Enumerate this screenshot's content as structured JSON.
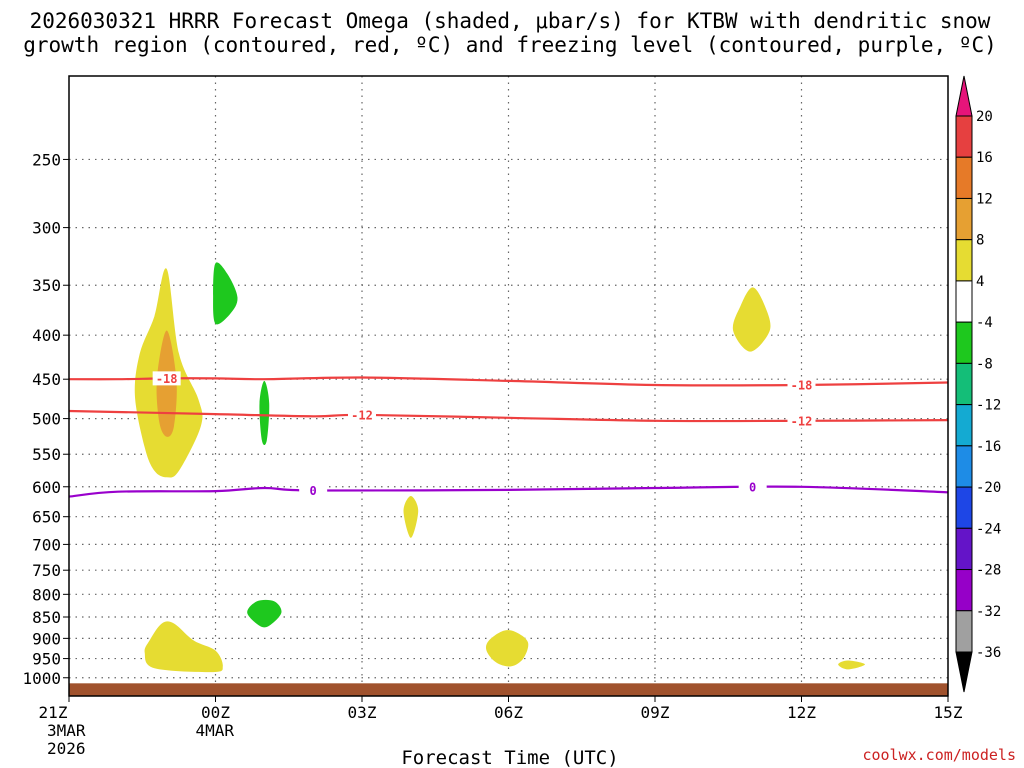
{
  "chart_data": {
    "type": "contour",
    "title_line1": "2026030321 HRRR Forecast Omega (shaded, μbar/s) for KTBW with dendritic snow",
    "title_line2": "growth region (contoured, red, ºC) and freezing level (contoured, purple, ºC)",
    "xlabel": "Forecast Time (UTC)",
    "credit": "coolwx.com/models",
    "x_ticks": [
      {
        "hour": 0,
        "label": "21Z",
        "sub1": "3MAR",
        "sub2": "2026"
      },
      {
        "hour": 3,
        "label": "00Z",
        "sub1": "4MAR",
        "sub2": ""
      },
      {
        "hour": 6,
        "label": "03Z",
        "sub1": "",
        "sub2": ""
      },
      {
        "hour": 9,
        "label": "06Z",
        "sub1": "",
        "sub2": ""
      },
      {
        "hour": 12,
        "label": "09Z",
        "sub1": "",
        "sub2": ""
      },
      {
        "hour": 15,
        "label": "12Z",
        "sub1": "",
        "sub2": ""
      },
      {
        "hour": 18,
        "label": "15Z",
        "sub1": "",
        "sub2": ""
      }
    ],
    "xlim": [
      0,
      18
    ],
    "ylim_hpa": [
      1050,
      200
    ],
    "y_ticks": [
      250,
      300,
      350,
      400,
      450,
      500,
      550,
      600,
      650,
      700,
      750,
      800,
      850,
      900,
      950,
      1000
    ],
    "isotherms": [
      {
        "label": "-18",
        "kind": "dgz",
        "color": "#ee4040",
        "points": [
          [
            0,
            450
          ],
          [
            1,
            450
          ],
          [
            2,
            449
          ],
          [
            3,
            449
          ],
          [
            4,
            450
          ],
          [
            6,
            448
          ],
          [
            9,
            452
          ],
          [
            12,
            457
          ],
          [
            15,
            457
          ],
          [
            18,
            454
          ]
        ],
        "label_hours": [
          2,
          15
        ]
      },
      {
        "label": "-12",
        "kind": "dgz",
        "color": "#ee4040",
        "points": [
          [
            0,
            490
          ],
          [
            3,
            494
          ],
          [
            5,
            497
          ],
          [
            6,
            495
          ],
          [
            9,
            499
          ],
          [
            12,
            503
          ],
          [
            15,
            503
          ],
          [
            18,
            502
          ]
        ],
        "label_hours": [
          6,
          15
        ]
      },
      {
        "label": "0",
        "kind": "freezing",
        "color": "#9900cc",
        "points": [
          [
            0,
            616
          ],
          [
            1,
            608
          ],
          [
            3,
            607
          ],
          [
            4,
            602
          ],
          [
            5,
            606
          ],
          [
            9,
            605
          ],
          [
            12,
            602
          ],
          [
            15,
            600
          ],
          [
            18,
            609
          ]
        ],
        "label_hours": [
          5,
          14
        ]
      }
    ],
    "omega_regions": [
      {
        "value_range": [
          4,
          8
        ],
        "color": "#e6dc32",
        "hpa_center": 455,
        "hour_center": 2.0,
        "outline": [
          [
            2.0,
            335
          ],
          [
            2.25,
            420
          ],
          [
            2.65,
            475
          ],
          [
            2.7,
            510
          ],
          [
            2.25,
            575
          ],
          [
            2.0,
            585
          ],
          [
            1.75,
            575
          ],
          [
            1.55,
            540
          ],
          [
            1.35,
            470
          ],
          [
            1.45,
            420
          ],
          [
            1.75,
            380
          ]
        ]
      },
      {
        "value_range": [
          8,
          12
        ],
        "color": "#e6a032",
        "hpa_center": 460,
        "hour_center": 2.0,
        "outline": [
          [
            2.0,
            395
          ],
          [
            2.2,
            450
          ],
          [
            2.15,
            510
          ],
          [
            2.0,
            525
          ],
          [
            1.85,
            505
          ],
          [
            1.8,
            450
          ]
        ]
      },
      {
        "value_range": [
          -8,
          -4
        ],
        "color": "#1ec81e",
        "hpa_center": 358,
        "hour_center": 3.1,
        "outline": [
          [
            3.0,
            330
          ],
          [
            3.25,
            340
          ],
          [
            3.45,
            362
          ],
          [
            3.3,
            378
          ],
          [
            3.0,
            388
          ],
          [
            2.95,
            360
          ]
        ]
      },
      {
        "value_range": [
          -8,
          -4
        ],
        "color": "#1ec81e",
        "hpa_center": 490,
        "hour_center": 4.0,
        "outline": [
          [
            4.0,
            452
          ],
          [
            4.1,
            480
          ],
          [
            4.05,
            530
          ],
          [
            3.95,
            530
          ],
          [
            3.9,
            480
          ]
        ]
      },
      {
        "value_range": [
          -8,
          -4
        ],
        "color": "#1ec81e",
        "hpa_center": 840,
        "hour_center": 4.0,
        "outline": [
          [
            3.65,
            840
          ],
          [
            3.85,
            815
          ],
          [
            4.2,
            815
          ],
          [
            4.35,
            840
          ],
          [
            4.1,
            870
          ],
          [
            3.9,
            870
          ]
        ]
      },
      {
        "value_range": [
          4,
          8
        ],
        "color": "#e6dc32",
        "hpa_center": 920,
        "hour_center": 2.5,
        "outline": [
          [
            1.65,
            905
          ],
          [
            1.9,
            865
          ],
          [
            2.15,
            865
          ],
          [
            2.55,
            905
          ],
          [
            3.0,
            930
          ],
          [
            3.15,
            970
          ],
          [
            2.95,
            985
          ],
          [
            1.75,
            975
          ],
          [
            1.55,
            935
          ]
        ]
      },
      {
        "value_range": [
          4,
          8
        ],
        "color": "#e6dc32",
        "hpa_center": 640,
        "hour_center": 7.0,
        "outline": [
          [
            7.0,
            615
          ],
          [
            7.15,
            640
          ],
          [
            7.0,
            688
          ],
          [
            6.85,
            640
          ]
        ]
      },
      {
        "value_range": [
          4,
          8
        ],
        "color": "#e6dc32",
        "hpa_center": 915,
        "hour_center": 9.0,
        "outline": [
          [
            8.6,
            905
          ],
          [
            8.9,
            882
          ],
          [
            9.15,
            885
          ],
          [
            9.4,
            910
          ],
          [
            9.3,
            950
          ],
          [
            9.05,
            970
          ],
          [
            8.75,
            960
          ],
          [
            8.55,
            930
          ]
        ]
      },
      {
        "value_range": [
          4,
          8
        ],
        "color": "#e6dc32",
        "hpa_center": 385,
        "hour_center": 14.0,
        "outline": [
          [
            14.0,
            352
          ],
          [
            14.25,
            370
          ],
          [
            14.35,
            395
          ],
          [
            13.95,
            418
          ],
          [
            13.6,
            395
          ],
          [
            13.75,
            370
          ]
        ]
      },
      {
        "value_range": [
          4,
          8
        ],
        "color": "#e6dc32",
        "hpa_center": 965,
        "hour_center": 16.0,
        "outline": [
          [
            15.75,
            965
          ],
          [
            15.95,
            955
          ],
          [
            16.3,
            965
          ],
          [
            15.95,
            978
          ]
        ]
      }
    ],
    "terrain": {
      "color": "#a0522d",
      "hpa_top": 1015
    },
    "colorbar": {
      "labels": [
        "20",
        "16",
        "12",
        "8",
        "4",
        "-4",
        "-8",
        "-12",
        "-16",
        "-20",
        "-24",
        "-28",
        "-32",
        "-36"
      ],
      "top_color": "#e6147a",
      "bottom_color": "#000000",
      "bands": [
        "#e64040",
        "#e67a28",
        "#e6a032",
        "#e6dc32",
        "#ffffff",
        "#1ec81e",
        "#14be78",
        "#14aad2",
        "#1e8ce6",
        "#1e46e6",
        "#6414c8",
        "#9600c8",
        "#a0a0a0"
      ]
    }
  }
}
